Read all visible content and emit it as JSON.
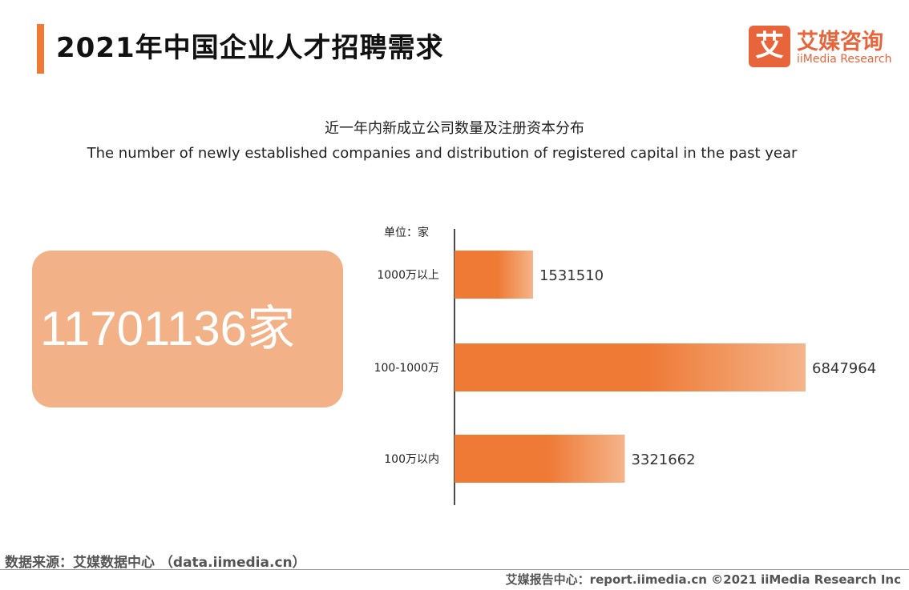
{
  "header": {
    "title": "2021年中国企业人才招聘需求",
    "logo_mark": "艾",
    "logo_cn": "艾媒咨询",
    "logo_en": "iiMedia Research"
  },
  "subtitle_cn": "近一年内新成立公司数量及注册资本分布",
  "subtitle_en": "The number of newly established companies and distribution of registered capital in the past year",
  "total": "11701136家",
  "colors": {
    "accent": "#ee7a36",
    "bar_start": "#ee7a36",
    "bar_end": "#f5b48a",
    "total_box": "#f3b187"
  },
  "chart_data": {
    "type": "bar",
    "orientation": "horizontal",
    "unit_label": "单位：家",
    "categories": [
      "1000万以上",
      "100-1000万",
      "100万以内"
    ],
    "values": [
      1531510,
      6847964,
      3321662
    ],
    "value_labels": [
      "1531510",
      "6847964",
      "3321662"
    ],
    "grid": false
  },
  "footer": {
    "source": "数据来源：艾媒数据中心 （data.iimedia.cn）",
    "copyright": "艾媒报告中心：report.iimedia.cn   ©2021  iiMedia Research  Inc"
  }
}
